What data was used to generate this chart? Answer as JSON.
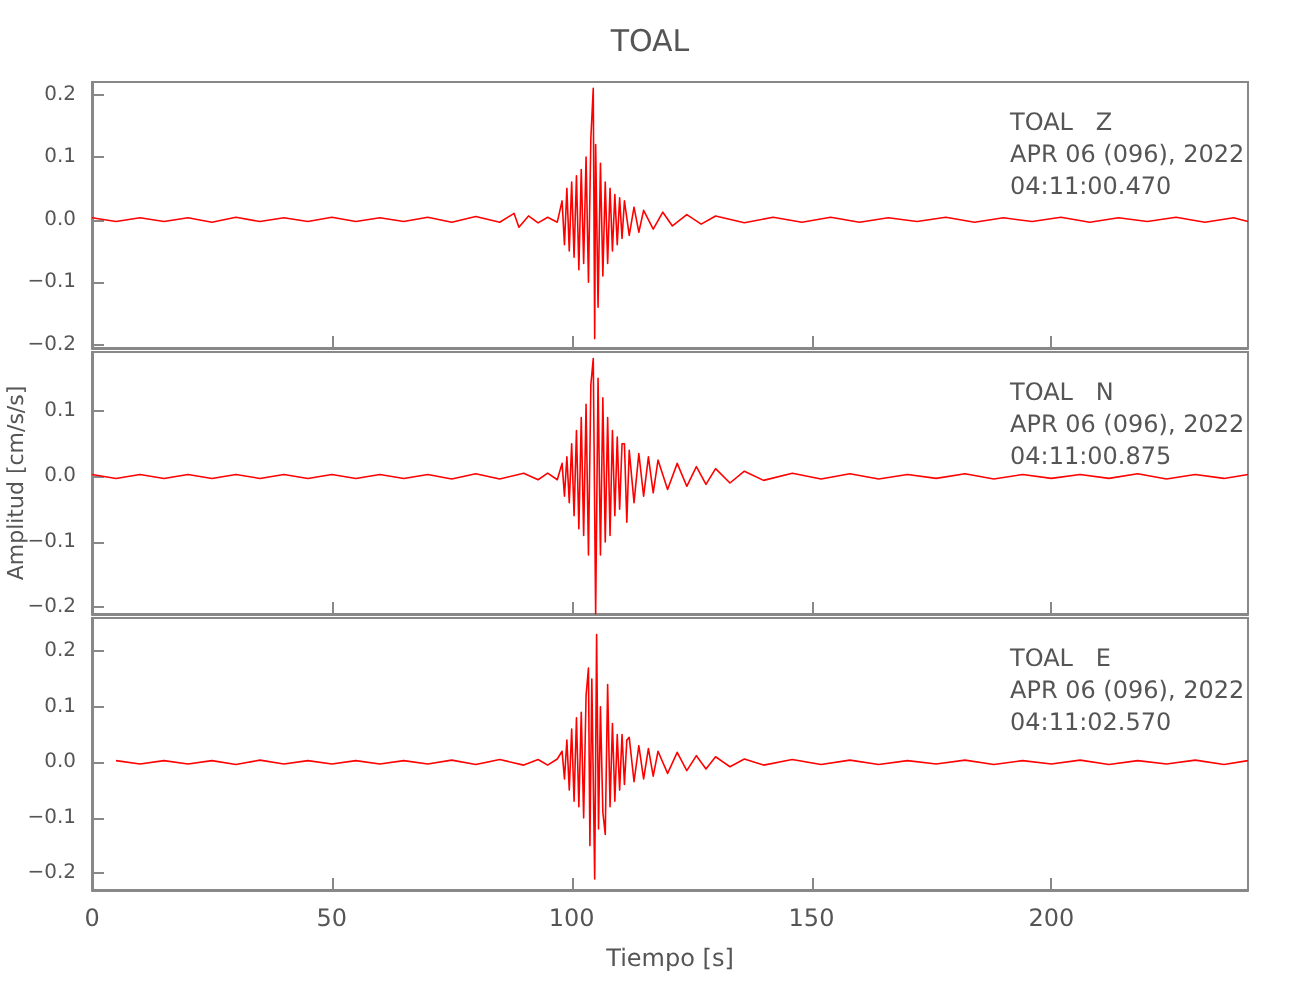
{
  "chart_data": [
    {
      "type": "line",
      "title": "TOAL",
      "annotations": [
        "TOAL   Z",
        "APR 06 (096), 2022",
        "04:11:00.470"
      ],
      "xlim": [
        0,
        241
      ],
      "xticks": [
        0,
        50,
        100,
        150,
        200
      ],
      "ylim": [
        -0.205,
        0.22
      ],
      "yticks": [
        {
          "value": 0.2,
          "label": "0.2"
        },
        {
          "value": 0.1,
          "label": "0.1"
        },
        {
          "value": 0,
          "label": "0.0"
        },
        {
          "value": -0.1,
          "label": "−0.1"
        },
        {
          "value": -0.2,
          "label": "−0.2"
        }
      ],
      "tick_labels": "y",
      "grid": false,
      "legend": false,
      "marker": "none",
      "line_style": "solid",
      "series": [
        {
          "color": "#ff0000",
          "x": [
            0,
            5,
            10,
            15,
            20,
            25,
            30,
            35,
            40,
            45,
            50,
            55,
            60,
            65,
            70,
            75,
            80,
            85,
            88,
            89,
            91,
            93,
            95,
            97,
            98,
            98.5,
            99,
            99.5,
            100,
            100.5,
            101,
            101.5,
            102,
            102.5,
            103,
            103.5,
            104,
            104.5,
            104.8,
            105,
            105.5,
            106,
            106.5,
            107,
            107.5,
            108,
            108.5,
            109,
            109.5,
            110,
            110.5,
            111,
            112,
            113,
            114,
            115,
            117,
            119,
            121,
            124,
            127,
            130,
            136,
            142,
            148,
            154,
            160,
            166,
            172,
            178,
            184,
            190,
            196,
            202,
            208,
            214,
            220,
            226,
            232,
            238,
            241
          ],
          "values": [
            0.003,
            -0.003,
            0.003,
            -0.003,
            0.003,
            -0.004,
            0.004,
            -0.003,
            0.003,
            -0.003,
            0.004,
            -0.003,
            0.003,
            -0.003,
            0.004,
            -0.004,
            0.005,
            -0.004,
            0.01,
            -0.012,
            0.006,
            -0.005,
            0.004,
            -0.004,
            0.03,
            -0.04,
            0.05,
            -0.05,
            0.06,
            -0.06,
            0.07,
            -0.08,
            0.08,
            -0.07,
            0.1,
            -0.1,
            0.13,
            0.21,
            -0.19,
            0.12,
            -0.14,
            0.09,
            -0.09,
            0.06,
            -0.07,
            0.05,
            -0.05,
            0.04,
            -0.04,
            0.035,
            -0.03,
            0.03,
            -0.025,
            0.02,
            -0.02,
            0.015,
            -0.015,
            0.012,
            -0.01,
            0.008,
            -0.007,
            0.006,
            -0.005,
            0.004,
            -0.004,
            0.004,
            -0.004,
            0.003,
            -0.003,
            0.004,
            -0.004,
            0.003,
            -0.003,
            0.004,
            -0.004,
            0.003,
            -0.003,
            0.004,
            -0.004,
            0.003,
            -0.003
          ]
        }
      ]
    },
    {
      "type": "line",
      "ylabel": "Amplitud [cm/s/s]",
      "annotations": [
        "TOAL   N",
        "APR 06 (096), 2022",
        "04:11:00.875"
      ],
      "xlim": [
        0,
        241
      ],
      "xticks": [
        0,
        50,
        100,
        150,
        200
      ],
      "ylim": [
        -0.21,
        0.19
      ],
      "yticks": [
        {
          "value": 0.1,
          "label": "0.1"
        },
        {
          "value": 0,
          "label": "0.0"
        },
        {
          "value": -0.1,
          "label": "−0.1"
        },
        {
          "value": -0.2,
          "label": "−0.2"
        }
      ],
      "tick_labels": "y",
      "grid": false,
      "legend": false,
      "marker": "none",
      "line_style": "solid",
      "series": [
        {
          "color": "#ff0000",
          "x": [
            0,
            5,
            10,
            15,
            20,
            25,
            30,
            35,
            40,
            45,
            50,
            55,
            60,
            65,
            70,
            75,
            80,
            85,
            90,
            93,
            95,
            97,
            98,
            98.5,
            99,
            99.5,
            100,
            100.5,
            101,
            101.5,
            102,
            102.5,
            103,
            103.5,
            104,
            104.5,
            105,
            105.5,
            106,
            106.5,
            107,
            107.5,
            108,
            108.5,
            109,
            109.5,
            110,
            110.5,
            111,
            111.5,
            112,
            113,
            114,
            115,
            116,
            117,
            118,
            120,
            122,
            124,
            126,
            128,
            130,
            133,
            136,
            140,
            146,
            152,
            158,
            164,
            170,
            176,
            182,
            188,
            194,
            200,
            206,
            212,
            218,
            224,
            230,
            236,
            241
          ],
          "values": [
            0.003,
            -0.003,
            0.003,
            -0.003,
            0.003,
            -0.003,
            0.003,
            -0.003,
            0.003,
            -0.003,
            0.003,
            -0.003,
            0.003,
            -0.003,
            0.003,
            -0.004,
            0.004,
            -0.004,
            0.005,
            -0.005,
            0.005,
            -0.005,
            0.02,
            -0.03,
            0.03,
            -0.04,
            0.05,
            -0.06,
            0.07,
            -0.08,
            0.09,
            -0.09,
            0.11,
            -0.12,
            0.14,
            0.18,
            -0.21,
            0.15,
            -0.12,
            0.12,
            -0.1,
            0.09,
            -0.09,
            0.07,
            -0.06,
            0.06,
            -0.05,
            0.05,
            0.05,
            -0.07,
            0.04,
            -0.04,
            0.035,
            -0.03,
            0.03,
            -0.025,
            0.025,
            -0.02,
            0.02,
            -0.015,
            0.015,
            -0.012,
            0.012,
            -0.01,
            0.008,
            -0.006,
            0.005,
            -0.004,
            0.004,
            -0.004,
            0.003,
            -0.003,
            0.004,
            -0.004,
            0.003,
            -0.003,
            0.003,
            -0.003,
            0.004,
            -0.004,
            0.003,
            -0.003,
            0.003
          ]
        }
      ]
    },
    {
      "type": "line",
      "xlabel": "Tiempo [s]",
      "annotations": [
        "TOAL   E",
        "APR 06 (096), 2022",
        "04:11:02.570"
      ],
      "xlim": [
        0,
        241
      ],
      "xticks": [
        0,
        50,
        100,
        150,
        200
      ],
      "ylim": [
        -0.23,
        0.26
      ],
      "yticks": [
        {
          "value": 0.2,
          "label": "0.2"
        },
        {
          "value": 0.1,
          "label": "0.1"
        },
        {
          "value": 0,
          "label": "0.0"
        },
        {
          "value": -0.1,
          "label": "−0.1"
        },
        {
          "value": -0.2,
          "label": "−0.2"
        }
      ],
      "grid": false,
      "legend": false,
      "marker": "none",
      "line_style": "solid",
      "series": [
        {
          "color": "#ff0000",
          "x": [
            5,
            10,
            15,
            20,
            25,
            30,
            35,
            40,
            45,
            50,
            55,
            60,
            65,
            70,
            75,
            80,
            85,
            90,
            93,
            95,
            97,
            98,
            98.5,
            99,
            99.5,
            100,
            100.5,
            101,
            101.5,
            102,
            102.5,
            103,
            103.5,
            103.8,
            104.2,
            104.8,
            105.2,
            105.6,
            106,
            106.5,
            107,
            107.5,
            108,
            108.5,
            109,
            109.5,
            110,
            110.5,
            111,
            111.5,
            112,
            113,
            114,
            115,
            116,
            117,
            118,
            120,
            122,
            124,
            126,
            128,
            130,
            133,
            136,
            140,
            146,
            152,
            158,
            164,
            170,
            176,
            182,
            188,
            194,
            200,
            206,
            212,
            218,
            224,
            230,
            236,
            241
          ],
          "values": [
            0.003,
            -0.003,
            0.003,
            -0.003,
            0.003,
            -0.004,
            0.004,
            -0.003,
            0.003,
            -0.003,
            0.003,
            -0.003,
            0.003,
            -0.003,
            0.004,
            -0.004,
            0.005,
            -0.005,
            0.005,
            -0.005,
            0.006,
            0.02,
            -0.03,
            0.04,
            -0.05,
            0.06,
            -0.07,
            0.08,
            -0.08,
            0.09,
            -0.1,
            0.12,
            0.17,
            -0.15,
            0.15,
            -0.21,
            0.23,
            -0.12,
            0.1,
            -0.09,
            -0.13,
            0.14,
            -0.08,
            0.07,
            -0.07,
            0.05,
            -0.05,
            0.05,
            -0.04,
            0.04,
            0.045,
            -0.035,
            0.03,
            -0.03,
            0.025,
            -0.025,
            0.02,
            -0.02,
            0.018,
            -0.015,
            0.012,
            -0.012,
            0.01,
            -0.008,
            0.006,
            -0.005,
            0.005,
            -0.004,
            0.004,
            -0.004,
            0.003,
            -0.003,
            0.004,
            -0.004,
            0.003,
            -0.003,
            0.004,
            -0.004,
            0.003,
            -0.003,
            0.004,
            -0.004,
            0.003
          ]
        }
      ]
    }
  ]
}
